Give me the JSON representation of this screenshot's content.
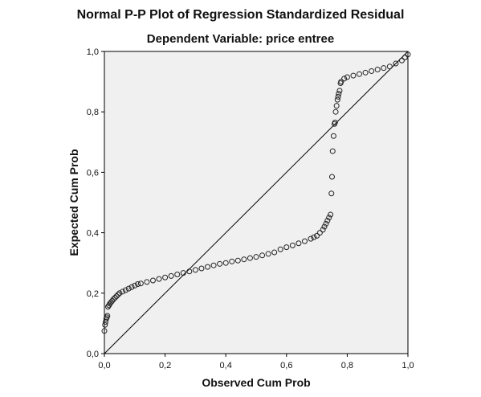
{
  "chart_data": {
    "type": "scatter",
    "title": "Normal P-P Plot of Regression Standardized Residual",
    "subtitle": "Dependent Variable: price entree",
    "xlabel": "Observed Cum Prob",
    "ylabel": "Expected Cum Prob",
    "xlim": [
      0,
      1
    ],
    "ylim": [
      0,
      1
    ],
    "xticks": [
      "0,0",
      "0,2",
      "0,4",
      "0,6",
      "0,8",
      "1,0"
    ],
    "yticks": [
      "0,0",
      "0,2",
      "0,4",
      "0,6",
      "0,8",
      "1,0"
    ],
    "grid": false,
    "reference_line": {
      "from": [
        0,
        0
      ],
      "to": [
        1,
        1
      ]
    },
    "colors": {
      "plot_background": "#f0f0f0",
      "marker_stroke": "#222222",
      "line": "#000000"
    },
    "points": {
      "x": [
        0.0,
        0.002,
        0.004,
        0.006,
        0.008,
        0.01,
        0.012,
        0.015,
        0.018,
        0.022,
        0.026,
        0.03,
        0.035,
        0.04,
        0.045,
        0.05,
        0.06,
        0.07,
        0.08,
        0.09,
        0.1,
        0.11,
        0.12,
        0.14,
        0.16,
        0.18,
        0.2,
        0.22,
        0.24,
        0.26,
        0.28,
        0.3,
        0.32,
        0.34,
        0.36,
        0.38,
        0.4,
        0.42,
        0.44,
        0.46,
        0.48,
        0.5,
        0.52,
        0.54,
        0.56,
        0.58,
        0.6,
        0.62,
        0.64,
        0.66,
        0.68,
        0.69,
        0.7,
        0.71,
        0.72,
        0.725,
        0.73,
        0.735,
        0.74,
        0.745,
        0.748,
        0.75,
        0.752,
        0.755,
        0.758,
        0.76,
        0.762,
        0.765,
        0.768,
        0.77,
        0.772,
        0.775,
        0.778,
        0.78,
        0.79,
        0.8,
        0.82,
        0.84,
        0.86,
        0.88,
        0.9,
        0.92,
        0.94,
        0.96,
        0.98,
        0.99,
        1.0
      ],
      "y": [
        0.075,
        0.095,
        0.105,
        0.115,
        0.12,
        0.125,
        0.155,
        0.16,
        0.165,
        0.17,
        0.175,
        0.18,
        0.185,
        0.19,
        0.195,
        0.2,
        0.205,
        0.21,
        0.215,
        0.22,
        0.225,
        0.23,
        0.232,
        0.237,
        0.242,
        0.247,
        0.252,
        0.257,
        0.262,
        0.267,
        0.272,
        0.277,
        0.282,
        0.287,
        0.292,
        0.297,
        0.3,
        0.305,
        0.308,
        0.312,
        0.316,
        0.32,
        0.325,
        0.33,
        0.335,
        0.345,
        0.352,
        0.358,
        0.365,
        0.372,
        0.38,
        0.385,
        0.39,
        0.4,
        0.41,
        0.42,
        0.43,
        0.44,
        0.45,
        0.46,
        0.53,
        0.585,
        0.67,
        0.72,
        0.76,
        0.765,
        0.8,
        0.82,
        0.84,
        0.85,
        0.86,
        0.87,
        0.895,
        0.9,
        0.91,
        0.915,
        0.92,
        0.925,
        0.93,
        0.935,
        0.94,
        0.945,
        0.95,
        0.96,
        0.97,
        0.98,
        0.99
      ]
    }
  }
}
